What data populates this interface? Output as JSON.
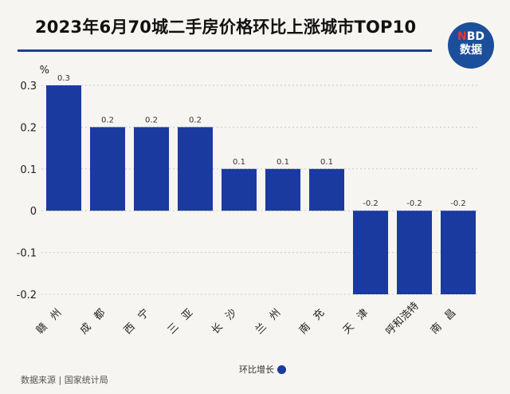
{
  "chart_data": {
    "type": "bar",
    "title": "2023年6月70城二手房价格环比上涨城市TOP10",
    "ylabel": "%",
    "ylim": [
      -0.2,
      0.3
    ],
    "yticks": [
      "0.3",
      "0.2",
      "0.1",
      "0",
      "-0.1",
      "-0.2"
    ],
    "categories": [
      "赣州",
      "成都",
      "西宁",
      "三亚",
      "长沙",
      "兰州",
      "南充",
      "天津",
      "呼和浩特",
      "南昌"
    ],
    "series": [
      {
        "name": "环比增长",
        "values": [
          0.3,
          0.2,
          0.2,
          0.2,
          0.1,
          0.1,
          0.1,
          -0.2,
          -0.2,
          -0.2
        ],
        "labels": [
          "0.3",
          "0.2",
          "0.2",
          "0.2",
          "0.1",
          "0.1",
          "0.1",
          "-0.2",
          "-0.2",
          "-0.2"
        ],
        "color": "#1a3aa0"
      }
    ],
    "grid": true,
    "legend": "bottom-center"
  },
  "logo": {
    "line1_accent": "N",
    "line1_rest": "BD",
    "line2": "数据"
  },
  "source": "数据来源 | 国家统计局"
}
